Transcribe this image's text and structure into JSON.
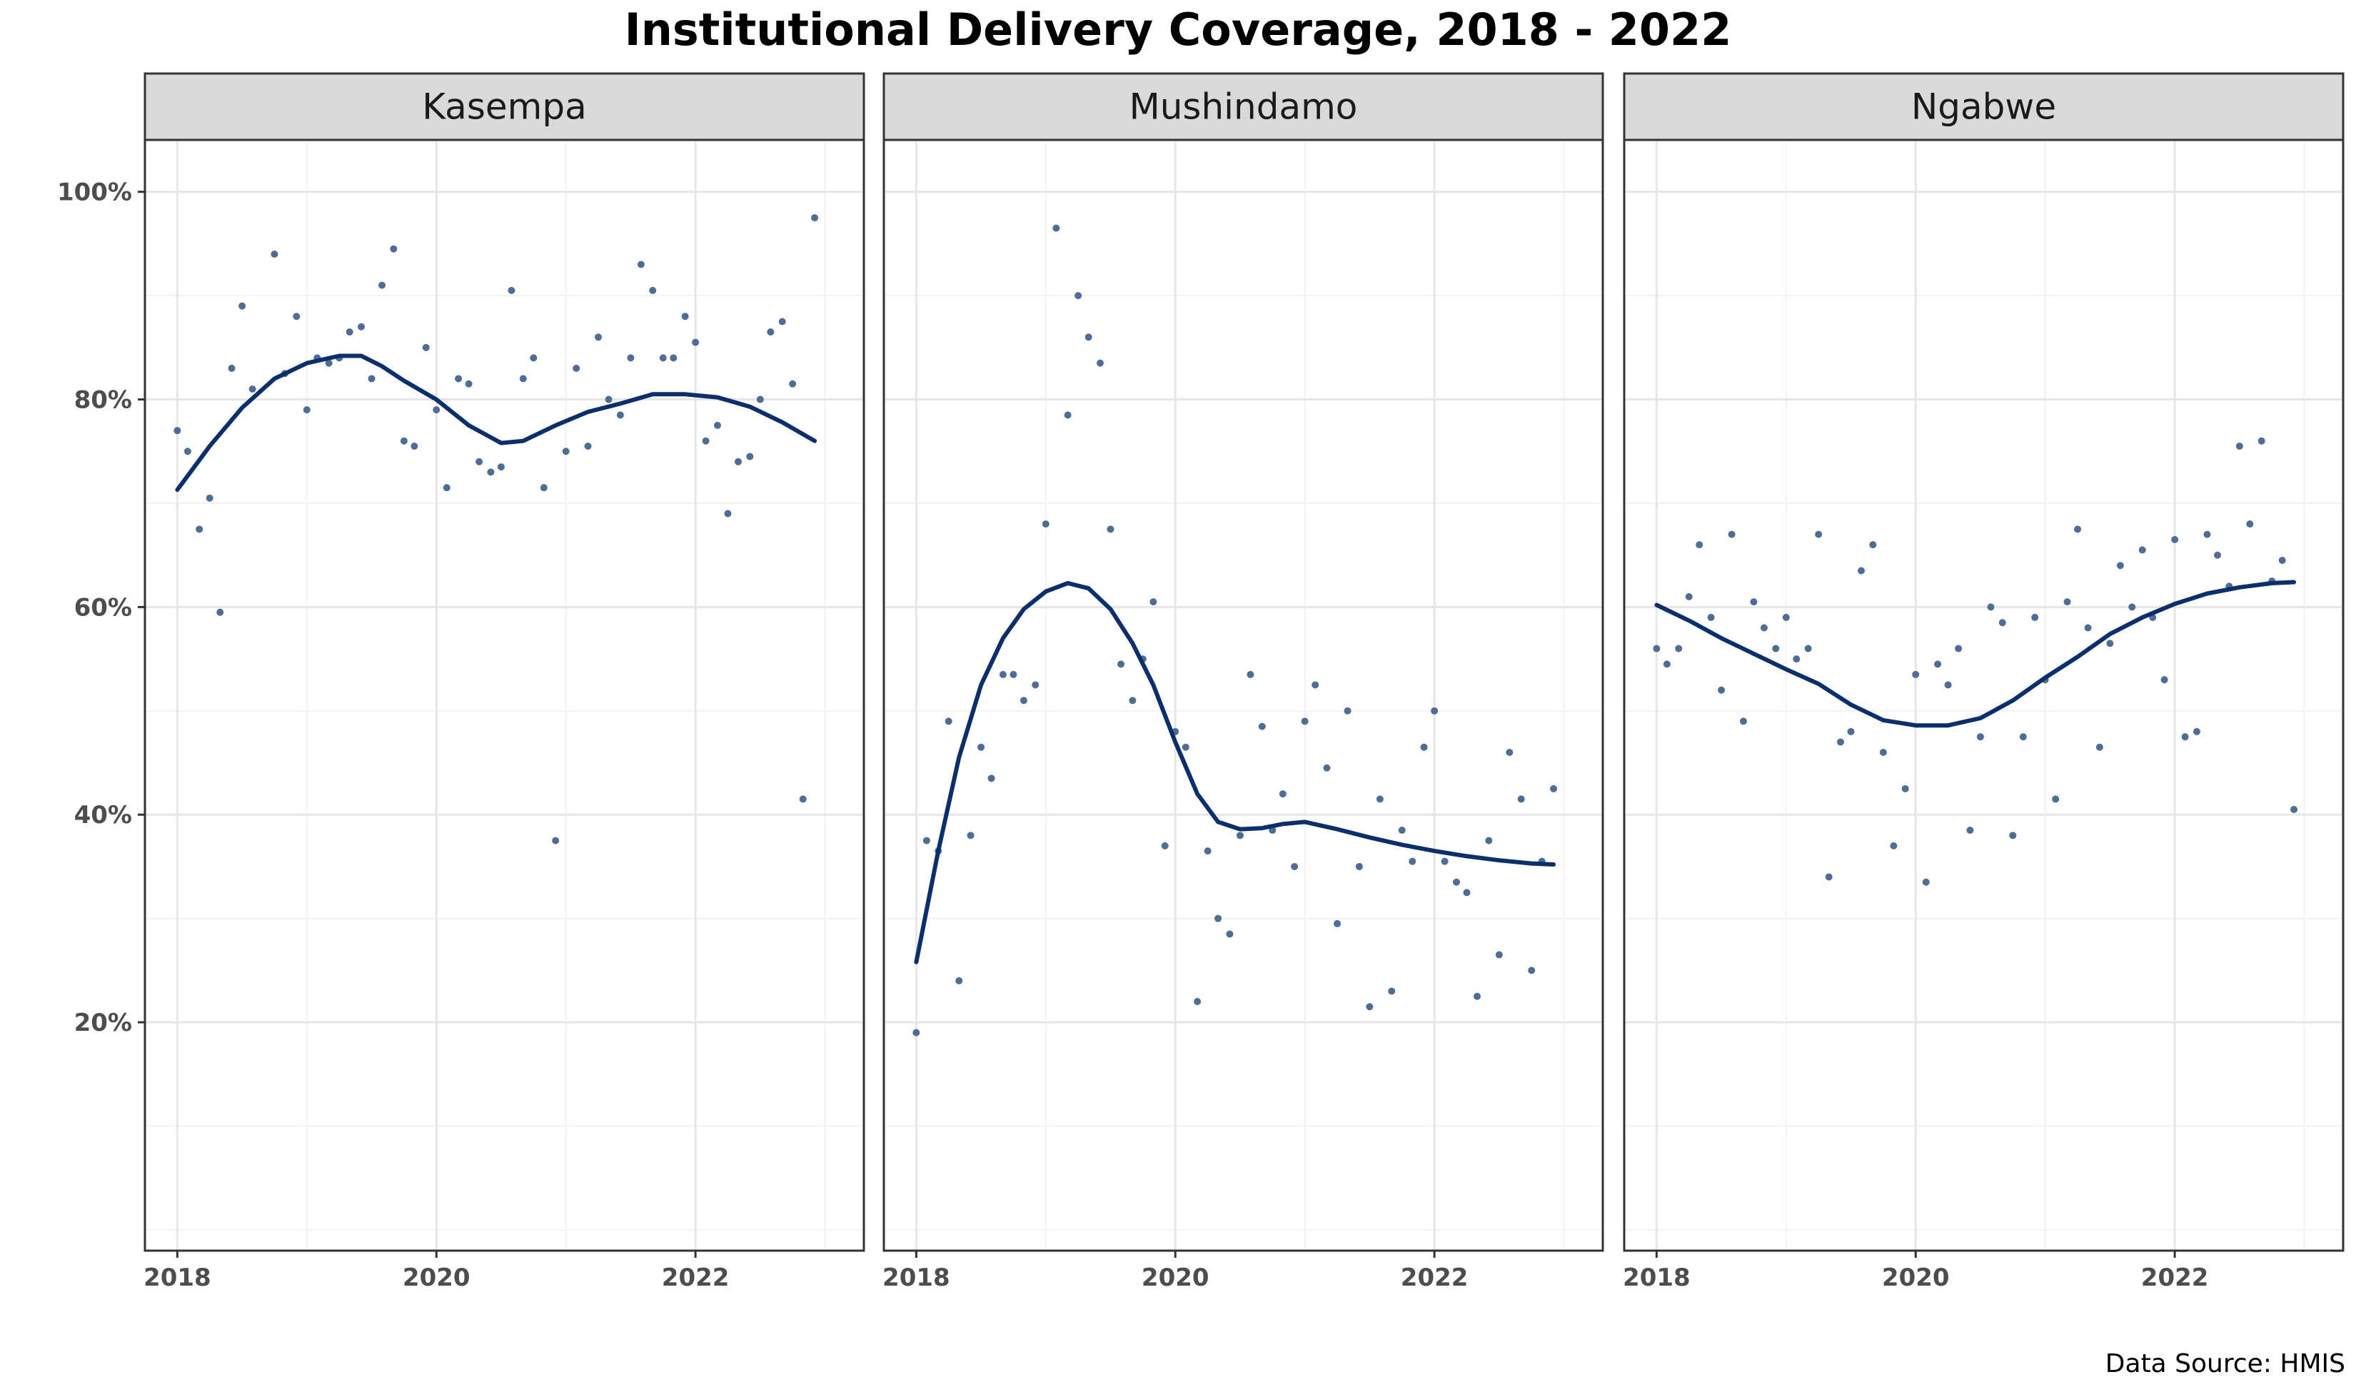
{
  "title": "Institutional Delivery Coverage, 2018 - 2022",
  "caption": "Data Source: HMIS",
  "colors": {
    "line": "#0a2f6b",
    "point": "#4f6d94",
    "strip_fill": "#d9d9d9",
    "strip_border": "#333333",
    "grid_major": "#e6e6e6",
    "grid_minor": "#f2f2f2",
    "panel_border": "#333333"
  },
  "chart_data": {
    "type": "scatter",
    "facets": [
      "Kasempa",
      "Mushindamo",
      "Ngabwe"
    ],
    "x_ticks": [
      2018,
      2020,
      2022
    ],
    "xlim": [
      2017.75,
      2023.3
    ],
    "y_ticks": [
      20,
      40,
      60,
      80,
      100
    ],
    "y_tick_labels": [
      "20%",
      "40%",
      "60%",
      "80%",
      "100%"
    ],
    "ylim": [
      -2,
      105
    ],
    "grid": true,
    "smooth": true,
    "panels": [
      {
        "name": "Kasempa",
        "points": [
          [
            2018.0,
            77
          ],
          [
            2018.08,
            75
          ],
          [
            2018.17,
            67.5
          ],
          [
            2018.25,
            70.5
          ],
          [
            2018.33,
            59.5
          ],
          [
            2018.42,
            83
          ],
          [
            2018.5,
            89
          ],
          [
            2018.58,
            81
          ],
          [
            2018.75,
            94
          ],
          [
            2018.83,
            82.5
          ],
          [
            2018.92,
            88
          ],
          [
            2019.0,
            79
          ],
          [
            2019.08,
            84
          ],
          [
            2019.17,
            83.5
          ],
          [
            2019.25,
            84
          ],
          [
            2019.33,
            86.5
          ],
          [
            2019.42,
            87
          ],
          [
            2019.5,
            82
          ],
          [
            2019.58,
            91
          ],
          [
            2019.67,
            94.5
          ],
          [
            2019.75,
            76
          ],
          [
            2019.83,
            75.5
          ],
          [
            2019.92,
            85
          ],
          [
            2020.0,
            79
          ],
          [
            2020.08,
            71.5
          ],
          [
            2020.17,
            82
          ],
          [
            2020.25,
            81.5
          ],
          [
            2020.33,
            74
          ],
          [
            2020.42,
            73
          ],
          [
            2020.5,
            73.5
          ],
          [
            2020.58,
            90.5
          ],
          [
            2020.67,
            82
          ],
          [
            2020.75,
            84
          ],
          [
            2020.83,
            71.5
          ],
          [
            2020.92,
            37.5
          ],
          [
            2021.0,
            75
          ],
          [
            2021.08,
            83
          ],
          [
            2021.17,
            75.5
          ],
          [
            2021.25,
            86
          ],
          [
            2021.33,
            80
          ],
          [
            2021.42,
            78.5
          ],
          [
            2021.5,
            84
          ],
          [
            2021.58,
            93
          ],
          [
            2021.67,
            90.5
          ],
          [
            2021.75,
            84
          ],
          [
            2021.83,
            84
          ],
          [
            2021.92,
            88
          ],
          [
            2022.0,
            85.5
          ],
          [
            2022.08,
            76
          ],
          [
            2022.17,
            77.5
          ],
          [
            2022.25,
            69
          ],
          [
            2022.33,
            74
          ],
          [
            2022.42,
            74.5
          ],
          [
            2022.5,
            80
          ],
          [
            2022.58,
            86.5
          ],
          [
            2022.67,
            87.5
          ],
          [
            2022.75,
            81.5
          ],
          [
            2022.83,
            41.5
          ],
          [
            2022.92,
            97.5
          ]
        ],
        "smooth": [
          [
            2018.0,
            71.3
          ],
          [
            2018.25,
            75.5
          ],
          [
            2018.5,
            79.2
          ],
          [
            2018.75,
            82.0
          ],
          [
            2019.0,
            83.5
          ],
          [
            2019.25,
            84.2
          ],
          [
            2019.42,
            84.2
          ],
          [
            2019.58,
            83.2
          ],
          [
            2019.75,
            81.8
          ],
          [
            2020.0,
            80.0
          ],
          [
            2020.25,
            77.5
          ],
          [
            2020.5,
            75.8
          ],
          [
            2020.67,
            76.0
          ],
          [
            2020.92,
            77.5
          ],
          [
            2021.17,
            78.8
          ],
          [
            2021.42,
            79.6
          ],
          [
            2021.67,
            80.5
          ],
          [
            2021.92,
            80.5
          ],
          [
            2022.17,
            80.2
          ],
          [
            2022.42,
            79.3
          ],
          [
            2022.67,
            77.8
          ],
          [
            2022.92,
            76.0
          ]
        ]
      },
      {
        "name": "Mushindamo",
        "points": [
          [
            2018.0,
            19
          ],
          [
            2018.08,
            37.5
          ],
          [
            2018.17,
            36.5
          ],
          [
            2018.25,
            49
          ],
          [
            2018.33,
            24
          ],
          [
            2018.42,
            38
          ],
          [
            2018.5,
            46.5
          ],
          [
            2018.58,
            43.5
          ],
          [
            2018.67,
            53.5
          ],
          [
            2018.75,
            53.5
          ],
          [
            2018.83,
            51
          ],
          [
            2018.92,
            52.5
          ],
          [
            2019.0,
            68
          ],
          [
            2019.08,
            96.5
          ],
          [
            2019.17,
            78.5
          ],
          [
            2019.25,
            90
          ],
          [
            2019.33,
            86
          ],
          [
            2019.42,
            83.5
          ],
          [
            2019.5,
            67.5
          ],
          [
            2019.58,
            54.5
          ],
          [
            2019.67,
            51
          ],
          [
            2019.75,
            55
          ],
          [
            2019.83,
            60.5
          ],
          [
            2019.92,
            37
          ],
          [
            2020.0,
            48
          ],
          [
            2020.08,
            46.5
          ],
          [
            2020.17,
            22
          ],
          [
            2020.25,
            36.5
          ],
          [
            2020.33,
            30
          ],
          [
            2020.42,
            28.5
          ],
          [
            2020.5,
            38
          ],
          [
            2020.58,
            53.5
          ],
          [
            2020.67,
            48.5
          ],
          [
            2020.75,
            38.5
          ],
          [
            2020.83,
            42
          ],
          [
            2020.92,
            35
          ],
          [
            2021.0,
            49
          ],
          [
            2021.08,
            52.5
          ],
          [
            2021.17,
            44.5
          ],
          [
            2021.25,
            29.5
          ],
          [
            2021.33,
            50
          ],
          [
            2021.42,
            35
          ],
          [
            2021.5,
            21.5
          ],
          [
            2021.58,
            41.5
          ],
          [
            2021.67,
            23
          ],
          [
            2021.75,
            38.5
          ],
          [
            2021.83,
            35.5
          ],
          [
            2021.92,
            46.5
          ],
          [
            2022.0,
            50
          ],
          [
            2022.08,
            35.5
          ],
          [
            2022.17,
            33.5
          ],
          [
            2022.25,
            32.5
          ],
          [
            2022.33,
            22.5
          ],
          [
            2022.42,
            37.5
          ],
          [
            2022.5,
            26.5
          ],
          [
            2022.58,
            46
          ],
          [
            2022.67,
            41.5
          ],
          [
            2022.75,
            25
          ],
          [
            2022.83,
            35.5
          ],
          [
            2022.92,
            42.5
          ]
        ],
        "smooth": [
          [
            2018.0,
            25.8
          ],
          [
            2018.17,
            36.5
          ],
          [
            2018.33,
            45.5
          ],
          [
            2018.5,
            52.5
          ],
          [
            2018.67,
            57.0
          ],
          [
            2018.83,
            59.8
          ],
          [
            2019.0,
            61.5
          ],
          [
            2019.17,
            62.3
          ],
          [
            2019.33,
            61.8
          ],
          [
            2019.5,
            59.8
          ],
          [
            2019.67,
            56.5
          ],
          [
            2019.83,
            52.5
          ],
          [
            2020.0,
            47.0
          ],
          [
            2020.17,
            42.0
          ],
          [
            2020.33,
            39.3
          ],
          [
            2020.5,
            38.6
          ],
          [
            2020.67,
            38.7
          ],
          [
            2020.83,
            39.1
          ],
          [
            2021.0,
            39.3
          ],
          [
            2021.25,
            38.6
          ],
          [
            2021.5,
            37.8
          ],
          [
            2021.75,
            37.1
          ],
          [
            2022.0,
            36.5
          ],
          [
            2022.25,
            36.0
          ],
          [
            2022.5,
            35.6
          ],
          [
            2022.75,
            35.3
          ],
          [
            2022.92,
            35.2
          ]
        ]
      },
      {
        "name": "Ngabwe",
        "points": [
          [
            2018.0,
            56
          ],
          [
            2018.08,
            54.5
          ],
          [
            2018.17,
            56
          ],
          [
            2018.25,
            61
          ],
          [
            2018.33,
            66
          ],
          [
            2018.42,
            59
          ],
          [
            2018.5,
            52
          ],
          [
            2018.58,
            67
          ],
          [
            2018.67,
            49
          ],
          [
            2018.75,
            60.5
          ],
          [
            2018.83,
            58
          ],
          [
            2018.92,
            56
          ],
          [
            2019.0,
            59
          ],
          [
            2019.08,
            55
          ],
          [
            2019.17,
            56
          ],
          [
            2019.25,
            67
          ],
          [
            2019.33,
            34
          ],
          [
            2019.42,
            47
          ],
          [
            2019.5,
            48
          ],
          [
            2019.58,
            63.5
          ],
          [
            2019.67,
            66
          ],
          [
            2019.75,
            46
          ],
          [
            2019.83,
            37
          ],
          [
            2019.92,
            42.5
          ],
          [
            2020.0,
            53.5
          ],
          [
            2020.08,
            33.5
          ],
          [
            2020.17,
            54.5
          ],
          [
            2020.25,
            52.5
          ],
          [
            2020.33,
            56
          ],
          [
            2020.42,
            38.5
          ],
          [
            2020.5,
            47.5
          ],
          [
            2020.58,
            60
          ],
          [
            2020.67,
            58.5
          ],
          [
            2020.75,
            38
          ],
          [
            2020.83,
            47.5
          ],
          [
            2020.92,
            59
          ],
          [
            2021.0,
            53
          ],
          [
            2021.08,
            41.5
          ],
          [
            2021.17,
            60.5
          ],
          [
            2021.25,
            67.5
          ],
          [
            2021.33,
            58
          ],
          [
            2021.42,
            46.5
          ],
          [
            2021.5,
            56.5
          ],
          [
            2021.58,
            64
          ],
          [
            2021.67,
            60
          ],
          [
            2021.75,
            65.5
          ],
          [
            2021.83,
            59
          ],
          [
            2021.92,
            53
          ],
          [
            2022.0,
            66.5
          ],
          [
            2022.08,
            47.5
          ],
          [
            2022.17,
            48
          ],
          [
            2022.25,
            67
          ],
          [
            2022.33,
            65
          ],
          [
            2022.42,
            62
          ],
          [
            2022.5,
            75.5
          ],
          [
            2022.58,
            68
          ],
          [
            2022.67,
            76
          ],
          [
            2022.75,
            62.5
          ],
          [
            2022.83,
            64.5
          ],
          [
            2022.92,
            40.5
          ]
        ],
        "smooth": [
          [
            2018.0,
            60.2
          ],
          [
            2018.25,
            58.7
          ],
          [
            2018.5,
            57.0
          ],
          [
            2018.75,
            55.5
          ],
          [
            2019.0,
            54.0
          ],
          [
            2019.25,
            52.6
          ],
          [
            2019.5,
            50.6
          ],
          [
            2019.75,
            49.1
          ],
          [
            2020.0,
            48.6
          ],
          [
            2020.25,
            48.6
          ],
          [
            2020.5,
            49.3
          ],
          [
            2020.75,
            51.0
          ],
          [
            2021.0,
            53.2
          ],
          [
            2021.25,
            55.2
          ],
          [
            2021.5,
            57.4
          ],
          [
            2021.75,
            59.0
          ],
          [
            2022.0,
            60.3
          ],
          [
            2022.25,
            61.3
          ],
          [
            2022.5,
            61.9
          ],
          [
            2022.75,
            62.3
          ],
          [
            2022.92,
            62.4
          ]
        ]
      }
    ]
  }
}
